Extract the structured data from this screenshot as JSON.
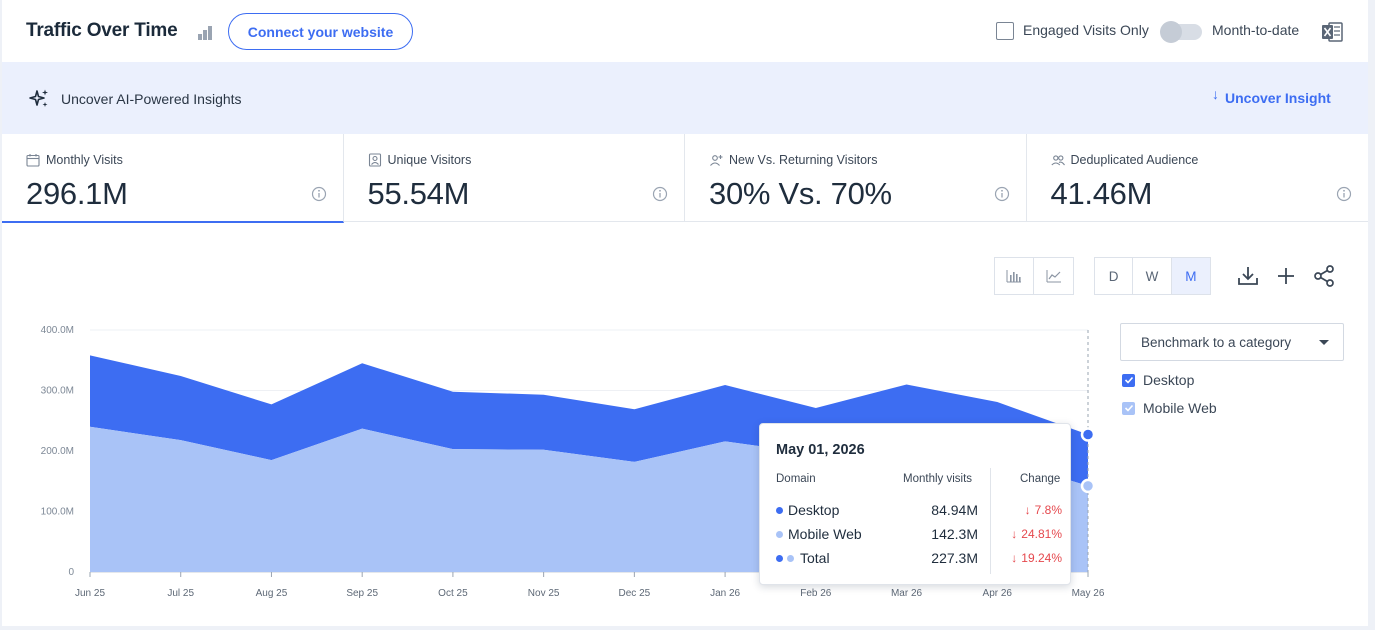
{
  "header": {
    "title": "Traffic Over Time",
    "connect_label": "Connect your website",
    "engaged_label": "Engaged Visits Only",
    "mtd_label": "Month-to-date"
  },
  "ai_banner": {
    "label": "Uncover AI-Powered Insights",
    "button_label": "Uncover Insight"
  },
  "metrics": [
    {
      "label": "Monthly Visits",
      "value": "296.1M",
      "icon": "calendar-icon",
      "active": true
    },
    {
      "label": "Unique Visitors",
      "value": "55.54M",
      "icon": "person-badge-icon"
    },
    {
      "label": "New Vs. Returning Visitors",
      "value": "30% Vs. 70%",
      "icon": "add-user-icon"
    },
    {
      "label": "Deduplicated Audience",
      "value": "41.46M",
      "icon": "users-icon"
    }
  ],
  "toolbar": {
    "granularity": [
      "D",
      "W",
      "M"
    ],
    "selected": "M"
  },
  "benchmark_label": "Benchmark to a category",
  "legend": [
    {
      "name": "Desktop",
      "color": "#3d6df2"
    },
    {
      "name": "Mobile Web",
      "color": "#a9c3f7"
    }
  ],
  "colors": {
    "accent": "#3d6df2",
    "desktop": "#3d6df2",
    "mobile": "#a9c3f7",
    "negative": "#e5484d"
  },
  "chart_data": {
    "type": "area",
    "stacked": true,
    "categories": [
      "Jun 25",
      "Jul 25",
      "Aug 25",
      "Sep 25",
      "Oct 25",
      "Nov 25",
      "Dec 25",
      "Jan 26",
      "Feb 26",
      "Mar 26",
      "Apr 26",
      "May 26"
    ],
    "yticks": [
      "0",
      "100.0M",
      "200.0M",
      "300.0M",
      "400.0M"
    ],
    "ylim": [
      0,
      400
    ],
    "series": [
      {
        "name": "Mobile Web",
        "values": [
          240,
          218,
          185,
          237,
          203,
          202,
          182,
          216,
          195,
          205,
          188,
          142.3
        ]
      },
      {
        "name": "Desktop",
        "values": [
          118,
          106,
          92,
          108,
          95,
          91,
          87,
          93,
          76,
          105,
          93,
          84.94
        ]
      }
    ],
    "grid": true
  },
  "tooltip": {
    "date": "May 01, 2026",
    "col_domain": "Domain",
    "col_visits": "Monthly visits",
    "col_change": "Change",
    "rows": [
      {
        "name": "Desktop",
        "value": "84.94M",
        "change": "7.8%"
      },
      {
        "name": "Mobile Web",
        "value": "142.3M",
        "change": "24.81%"
      },
      {
        "name": "Total",
        "value": "227.3M",
        "change": "19.24%"
      }
    ]
  }
}
